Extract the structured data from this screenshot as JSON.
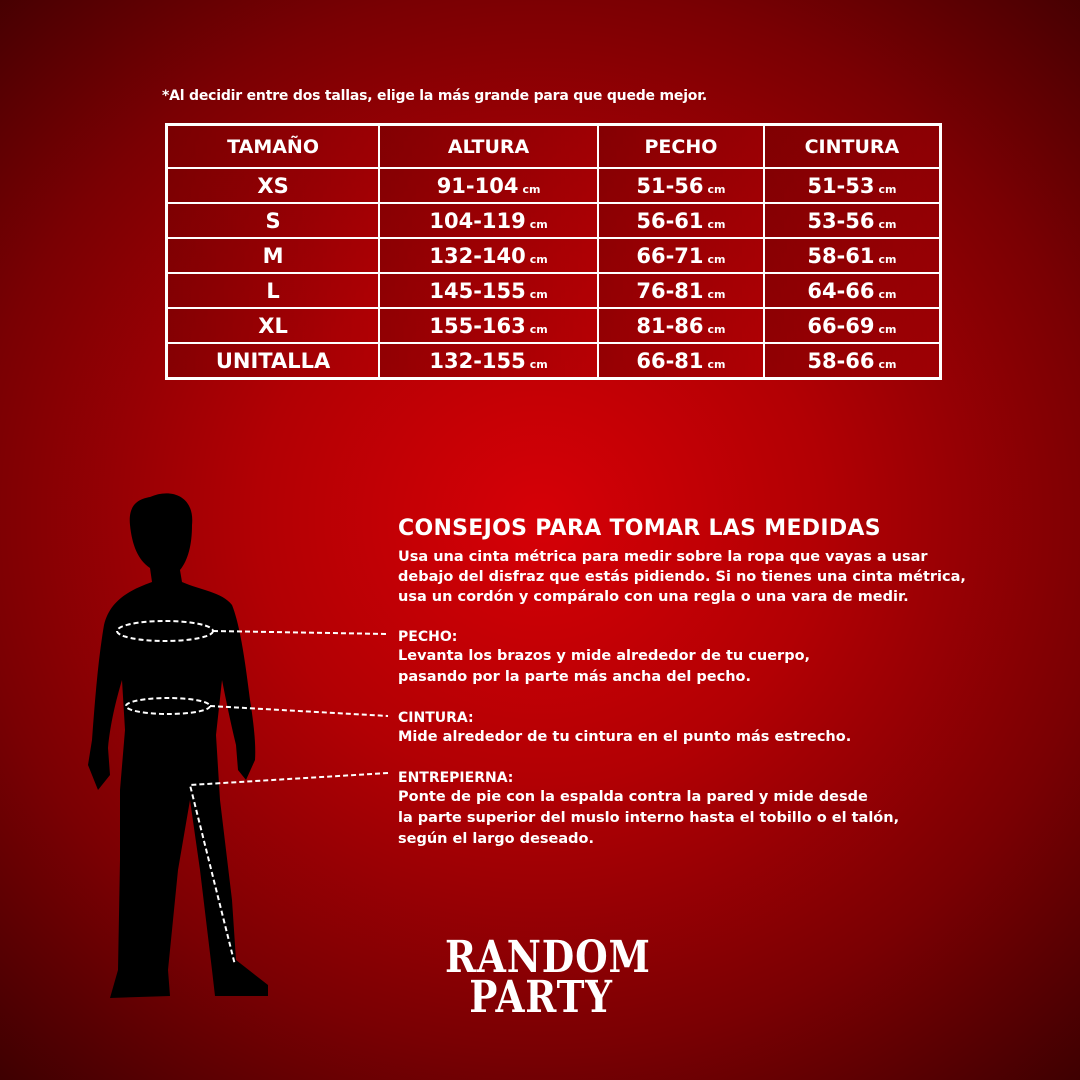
{
  "note": "*Al decidir entre dos tallas, elige la más grande para que quede mejor.",
  "table": {
    "headers": [
      "TAMAÑO",
      "ALTURA",
      "PECHO",
      "CINTURA"
    ],
    "unit": "cm",
    "rows": [
      {
        "size": "XS",
        "altura": "91-104",
        "pecho": "51-56",
        "cintura": "51-53"
      },
      {
        "size": "S",
        "altura": "104-119",
        "pecho": "56-61",
        "cintura": "53-56"
      },
      {
        "size": "M",
        "altura": "132-140",
        "pecho": "66-71",
        "cintura": "58-61"
      },
      {
        "size": "L",
        "altura": "145-155",
        "pecho": "76-81",
        "cintura": "64-66"
      },
      {
        "size": "XL",
        "altura": "155-163",
        "pecho": "81-86",
        "cintura": "66-69"
      },
      {
        "size": "UNITALLA",
        "altura": "132-155",
        "pecho": "66-81",
        "cintura": "58-66"
      }
    ]
  },
  "tips": {
    "title": "CONSEJOS PARA TOMAR LAS MEDIDAS",
    "intro": [
      "Usa una cinta métrica para medir sobre la ropa que vayas a usar",
      "debajo del disfraz que estás pidiendo. Si no tienes una cinta métrica,",
      "usa un cordón y compáralo con una regla o una vara de medir."
    ],
    "pecho": {
      "label": "PECHO:",
      "lines": [
        "Levanta los brazos y mide alrededor de tu cuerpo,",
        "pasando por la parte más ancha del pecho."
      ]
    },
    "cintura": {
      "label": "CINTURA:",
      "lines": [
        "Mide alrededor de tu cintura en el punto más estrecho."
      ]
    },
    "entrepierna": {
      "label": "ENTREPIERNA:",
      "lines": [
        "Ponte de pie con la espalda contra la pared y mide desde",
        "la parte superior del muslo interno hasta el tobillo o el talón,",
        "según el largo deseado."
      ]
    }
  },
  "logo": {
    "line1": "RANDOM",
    "line2": "PARTY"
  },
  "colors": {
    "background": "#c00004",
    "text": "#ffffff",
    "silhouette": "#000000"
  }
}
